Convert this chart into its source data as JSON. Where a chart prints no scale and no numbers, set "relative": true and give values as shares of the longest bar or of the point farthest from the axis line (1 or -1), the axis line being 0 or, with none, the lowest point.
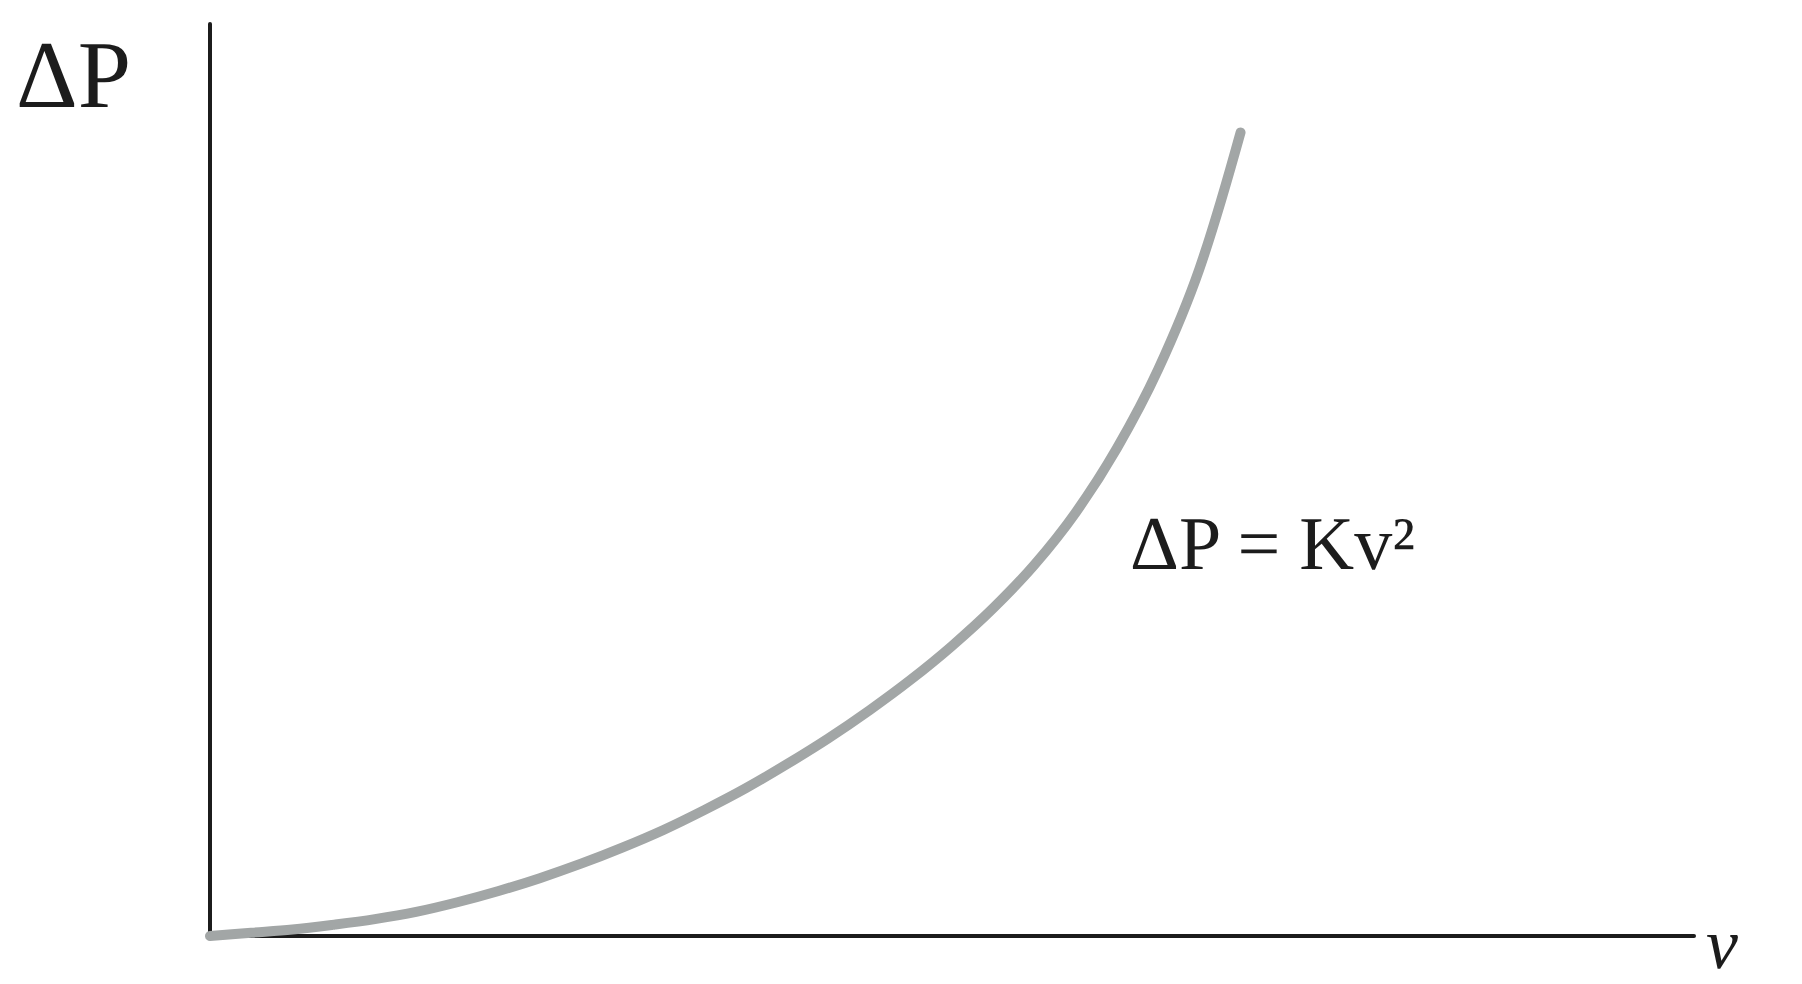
{
  "chart_data": {
    "type": "line",
    "xlabel": "v",
    "ylabel": "ΔP",
    "annotations": [
      "ΔP = Kv²"
    ],
    "categories": [
      null,
      null,
      null,
      null,
      null,
      null,
      null,
      null,
      null,
      null,
      null,
      null,
      null,
      null,
      null,
      null,
      null,
      null,
      null,
      null,
      null,
      null,
      null,
      null,
      null,
      null,
      null,
      null,
      null,
      null,
      null,
      null,
      null,
      null,
      null,
      null,
      null
    ],
    "color": "#a2a6a6",
    "values": [
      0,
      0.004,
      0.008,
      0.014,
      0.021,
      0.03,
      0.042,
      0.056,
      0.072,
      0.09,
      0.11,
      0.132,
      0.157,
      0.184,
      0.214,
      0.246,
      0.281,
      0.319,
      0.361,
      0.408,
      0.462,
      0.527,
      0.607,
      0.705,
      0.83,
      1,
      null,
      null,
      null,
      null,
      null,
      null,
      null,
      null,
      null,
      null,
      null
    ],
    "relative": true,
    "grid": false,
    "marker": "none",
    "line_style": "solid"
  }
}
